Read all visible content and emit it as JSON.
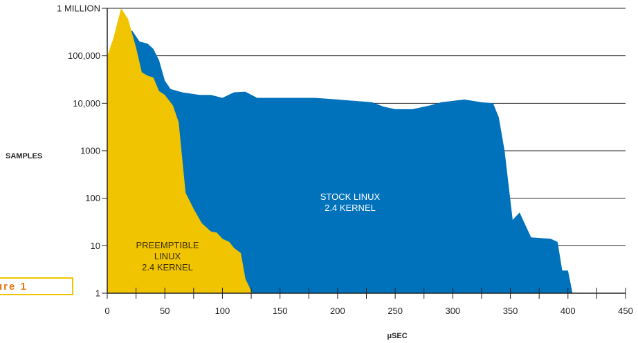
{
  "figure_label": "ure 1",
  "chart_data": {
    "type": "area",
    "ylabel": "SAMPLES",
    "xlabel": "μSEC",
    "y_scale": "log",
    "xlim": [
      0,
      450
    ],
    "ylim": [
      1,
      1000000
    ],
    "x_ticks": [
      0,
      50,
      100,
      150,
      200,
      250,
      300,
      350,
      400,
      450
    ],
    "x_tick_labels": [
      "0",
      "50",
      "100",
      "150",
      "200",
      "250",
      "300",
      "350",
      "400",
      "450"
    ],
    "y_ticks": [
      1,
      10,
      100,
      1000,
      10000,
      100000,
      1000000
    ],
    "y_tick_labels": [
      "1",
      "10",
      "100",
      "1000",
      "10,000",
      "100,000",
      "1 MILLION"
    ],
    "grid": "horizontal",
    "colors": {
      "stock": "#0072bc",
      "preempt": "#f0c400",
      "grid": "#222222"
    },
    "series": [
      {
        "name": "STOCK LINUX 2.4 KERNEL",
        "label_lines": [
          "STOCK LINUX",
          "2.4 KERNEL"
        ],
        "points": [
          [
            17,
            1
          ],
          [
            17,
            400000
          ],
          [
            22,
            330000
          ],
          [
            28,
            200000
          ],
          [
            35,
            180000
          ],
          [
            40,
            140000
          ],
          [
            45,
            80000
          ],
          [
            50,
            30000
          ],
          [
            55,
            20000
          ],
          [
            65,
            17000
          ],
          [
            80,
            15000
          ],
          [
            90,
            15000
          ],
          [
            100,
            13000
          ],
          [
            110,
            17000
          ],
          [
            120,
            17500
          ],
          [
            130,
            13000
          ],
          [
            150,
            13000
          ],
          [
            180,
            13000
          ],
          [
            200,
            12000
          ],
          [
            230,
            10500
          ],
          [
            240,
            8500
          ],
          [
            250,
            7500
          ],
          [
            265,
            7500
          ],
          [
            280,
            9000
          ],
          [
            290,
            10500
          ],
          [
            310,
            12000
          ],
          [
            325,
            10500
          ],
          [
            335,
            10000
          ],
          [
            340,
            5000
          ],
          [
            345,
            1000
          ],
          [
            352,
            35
          ],
          [
            358,
            50
          ],
          [
            368,
            15
          ],
          [
            385,
            14
          ],
          [
            391,
            12
          ],
          [
            395,
            3
          ],
          [
            400,
            3
          ],
          [
            404,
            1
          ]
        ]
      },
      {
        "name": "PREEMPTIBLE LINUX 2.4 KERNEL",
        "label_lines": [
          "PREEMPTIBLE",
          "LINUX",
          "2.4 KERNEL"
        ],
        "points": [
          [
            0,
            1
          ],
          [
            0,
            100000
          ],
          [
            5,
            220000
          ],
          [
            12,
            1000000
          ],
          [
            18,
            600000
          ],
          [
            25,
            150000
          ],
          [
            30,
            45000
          ],
          [
            35,
            38000
          ],
          [
            40,
            35000
          ],
          [
            45,
            18000
          ],
          [
            50,
            15000
          ],
          [
            57,
            9000
          ],
          [
            62,
            4000
          ],
          [
            68,
            130
          ],
          [
            75,
            60
          ],
          [
            82,
            30
          ],
          [
            90,
            20
          ],
          [
            95,
            19
          ],
          [
            100,
            14
          ],
          [
            106,
            12
          ],
          [
            110,
            9
          ],
          [
            116,
            7
          ],
          [
            120,
            2
          ],
          [
            126,
            1
          ]
        ]
      }
    ]
  }
}
